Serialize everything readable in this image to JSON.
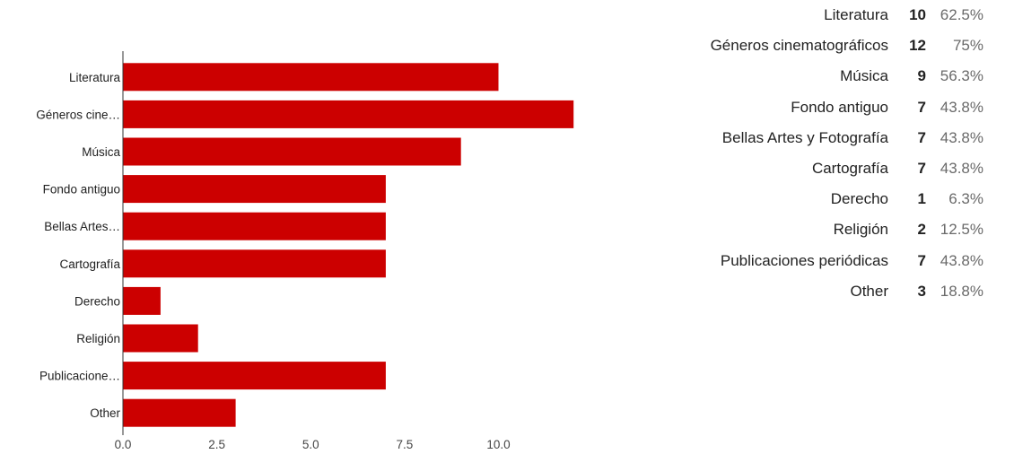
{
  "chart_data": {
    "type": "bar",
    "orientation": "horizontal",
    "categories": [
      "Literatura",
      "Géneros cinematográficos",
      "Música",
      "Fondo antiguo",
      "Bellas Artes y Fotografía",
      "Cartografía",
      "Derecho",
      "Religión",
      "Publicaciones periódicas",
      "Other"
    ],
    "axis_labels": [
      "Literatura",
      "Géneros cine…",
      "Música",
      "Fondo antiguo",
      "Bellas Artes…",
      "Cartografía",
      "Derecho",
      "Religión",
      "Publicacione…",
      "Other"
    ],
    "values": [
      10,
      12,
      9,
      7,
      7,
      7,
      1,
      2,
      7,
      3
    ],
    "percents": [
      "62.5%",
      "75%",
      "56.3%",
      "43.8%",
      "43.8%",
      "43.8%",
      "6.3%",
      "12.5%",
      "43.8%",
      "18.8%"
    ],
    "x_ticks": [
      "0.0",
      "2.5",
      "5.0",
      "7.5",
      "10.0"
    ],
    "xlim": [
      0,
      12
    ],
    "grid": false,
    "bar_color": "#cc0000"
  }
}
